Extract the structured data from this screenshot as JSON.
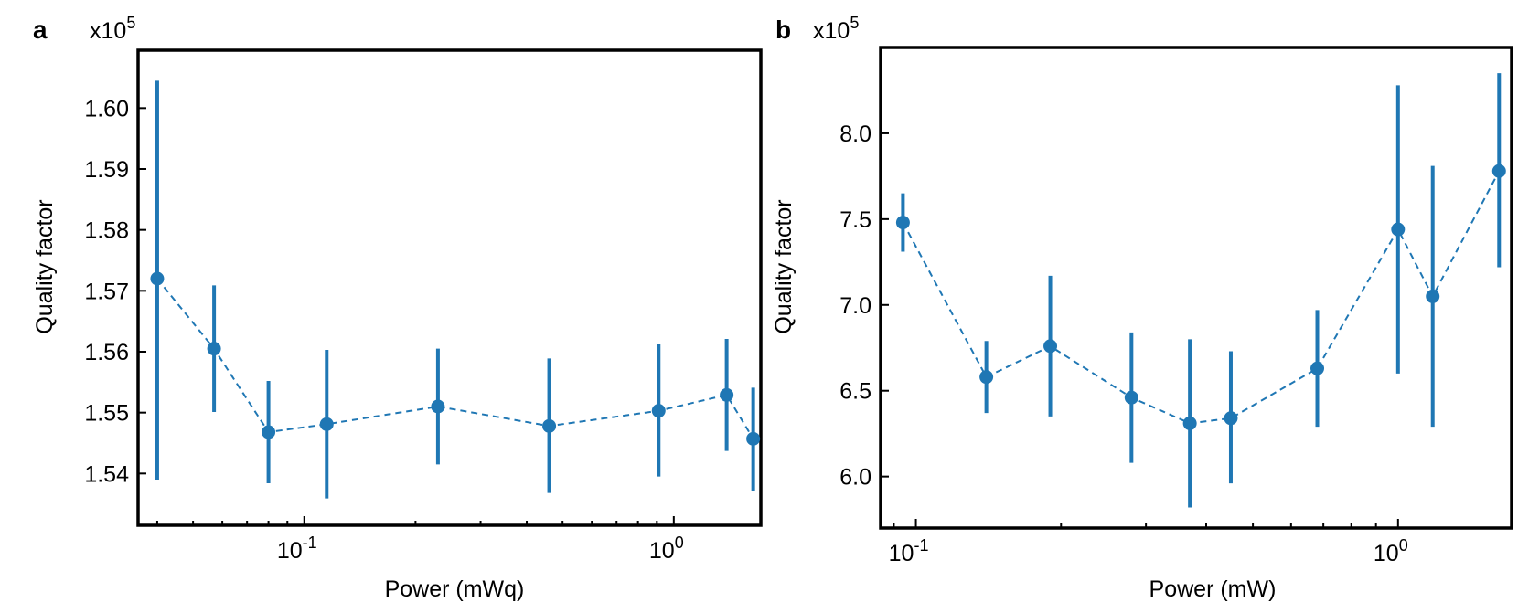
{
  "colors": {
    "series": "#1f77b4",
    "axes": "#000000"
  },
  "chart_data": [
    {
      "type": "scatter",
      "panel_label": "a",
      "scale_label": {
        "base": "x10",
        "exp": "5"
      },
      "xlabel": "Power (mWq)",
      "ylabel": "Quality factor",
      "x_scale": "log",
      "xlim": [
        0.0355,
        1.72
      ],
      "ylim": [
        1.5315,
        1.6095
      ],
      "xticks": [
        {
          "value": 0.1,
          "base": "10",
          "exp": "-1"
        },
        {
          "value": 1.0,
          "base": "10",
          "exp": "0"
        }
      ],
      "yticks": [
        {
          "value": 1.54,
          "label": "1.54"
        },
        {
          "value": 1.55,
          "label": "1.55"
        },
        {
          "value": 1.56,
          "label": "1.56"
        },
        {
          "value": 1.57,
          "label": "1.57"
        },
        {
          "value": 1.58,
          "label": "1.58"
        },
        {
          "value": 1.59,
          "label": "1.59"
        },
        {
          "value": 1.6,
          "label": "1.60"
        }
      ],
      "grid": false,
      "connector": "dashed",
      "points": [
        {
          "x": 0.04,
          "y": 1.572,
          "lo": 1.539,
          "hi": 1.6045
        },
        {
          "x": 0.057,
          "y": 1.5605,
          "lo": 1.5501,
          "hi": 1.5709
        },
        {
          "x": 0.08,
          "y": 1.5468,
          "lo": 1.5384,
          "hi": 1.5552
        },
        {
          "x": 0.115,
          "y": 1.5481,
          "lo": 1.5359,
          "hi": 1.5603
        },
        {
          "x": 0.23,
          "y": 1.551,
          "lo": 1.5415,
          "hi": 1.5605
        },
        {
          "x": 0.46,
          "y": 1.5478,
          "lo": 1.5368,
          "hi": 1.5589
        },
        {
          "x": 0.91,
          "y": 1.5503,
          "lo": 1.5395,
          "hi": 1.5612
        },
        {
          "x": 1.39,
          "y": 1.5529,
          "lo": 1.5437,
          "hi": 1.5621
        },
        {
          "x": 1.64,
          "y": 1.5457,
          "lo": 1.5371,
          "hi": 1.5541
        }
      ]
    },
    {
      "type": "scatter",
      "panel_label": "b",
      "scale_label": {
        "base": "x10",
        "exp": "5"
      },
      "xlabel": "Power (mW)",
      "ylabel": "Quality factor",
      "x_scale": "log",
      "xlim": [
        0.0845,
        1.72
      ],
      "ylim": [
        5.7,
        8.5
      ],
      "xticks": [
        {
          "value": 0.1,
          "base": "10",
          "exp": "-1"
        },
        {
          "value": 1.0,
          "base": "10",
          "exp": "0"
        }
      ],
      "yticks": [
        {
          "value": 6.0,
          "label": "6.0"
        },
        {
          "value": 6.5,
          "label": "6.5"
        },
        {
          "value": 7.0,
          "label": "7.0"
        },
        {
          "value": 7.5,
          "label": "7.5"
        },
        {
          "value": 8.0,
          "label": "8.0"
        }
      ],
      "grid": false,
      "connector": "dashed",
      "points": [
        {
          "x": 0.094,
          "y": 7.48,
          "lo": 7.31,
          "hi": 7.65
        },
        {
          "x": 0.14,
          "y": 6.58,
          "lo": 6.37,
          "hi": 6.79
        },
        {
          "x": 0.19,
          "y": 6.76,
          "lo": 6.35,
          "hi": 7.17
        },
        {
          "x": 0.28,
          "y": 6.46,
          "lo": 6.08,
          "hi": 6.84
        },
        {
          "x": 0.37,
          "y": 6.31,
          "lo": 5.82,
          "hi": 6.8
        },
        {
          "x": 0.45,
          "y": 6.34,
          "lo": 5.96,
          "hi": 6.73
        },
        {
          "x": 0.68,
          "y": 6.63,
          "lo": 6.29,
          "hi": 6.97
        },
        {
          "x": 1.0,
          "y": 7.44,
          "lo": 6.6,
          "hi": 8.28
        },
        {
          "x": 1.18,
          "y": 7.05,
          "lo": 6.29,
          "hi": 7.81
        },
        {
          "x": 1.62,
          "y": 7.78,
          "lo": 7.22,
          "hi": 8.35
        }
      ]
    }
  ]
}
